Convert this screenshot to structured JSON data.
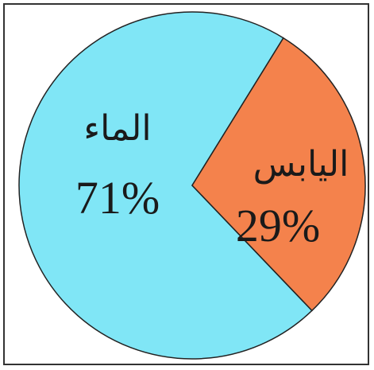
{
  "chart_data": {
    "type": "pie",
    "labels": [
      "الماء",
      "اليابس"
    ],
    "values": [
      71,
      29
    ],
    "value_labels": [
      "71%",
      "29%"
    ],
    "colors": [
      "#80e6f6",
      "#f4824c"
    ],
    "title": "",
    "legend": "none"
  }
}
